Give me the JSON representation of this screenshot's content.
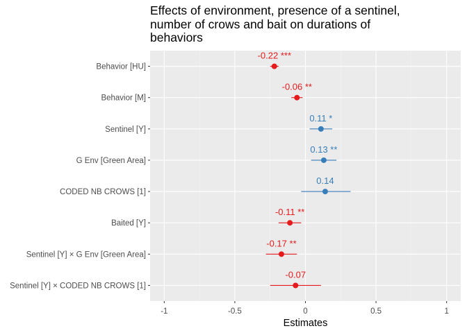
{
  "chart_data": {
    "type": "forest",
    "title": "Effects of environment, presence of a sentinel,\nnumber of crows and bait on durations of\nbehaviors",
    "xlabel": "Estimates",
    "xlim": [
      -1.1,
      1.1
    ],
    "xticks": [
      -1,
      -0.5,
      0,
      0.5,
      1
    ],
    "xtick_labels": [
      "-1",
      "-0.5",
      "0",
      "0.5",
      "1"
    ],
    "grid": true,
    "colors": {
      "negative": "#e41a1c",
      "positive": "#377eb8"
    },
    "terms": [
      {
        "label": "Behavior [HU]",
        "estimate": -0.22,
        "ci": [
          -0.25,
          -0.19
        ],
        "annotation": "-0.22 ***",
        "sign": "negative"
      },
      {
        "label": "Behavior [M]",
        "estimate": -0.06,
        "ci": [
          -0.1,
          -0.02
        ],
        "annotation": "-0.06 **",
        "sign": "negative"
      },
      {
        "label": "Sentinel [Y]",
        "estimate": 0.11,
        "ci": [
          0.03,
          0.19
        ],
        "annotation": "0.11 *",
        "sign": "positive"
      },
      {
        "label": "G Env [Green Area]",
        "estimate": 0.13,
        "ci": [
          0.04,
          0.22
        ],
        "annotation": "0.13 **",
        "sign": "positive"
      },
      {
        "label": "CODED NB CROWS [1]",
        "estimate": 0.14,
        "ci": [
          -0.03,
          0.32
        ],
        "annotation": "0.14",
        "sign": "positive"
      },
      {
        "label": "Baited [Y]",
        "estimate": -0.11,
        "ci": [
          -0.19,
          -0.03
        ],
        "annotation": "-0.11 **",
        "sign": "negative"
      },
      {
        "label": "Sentinel [Y] × G Env [Green Area]",
        "estimate": -0.17,
        "ci": [
          -0.28,
          -0.06
        ],
        "annotation": "-0.17 **",
        "sign": "negative"
      },
      {
        "label": "Sentinel [Y] × CODED NB CROWS [1]",
        "estimate": -0.07,
        "ci": [
          -0.25,
          0.11
        ],
        "annotation": "-0.07",
        "sign": "negative"
      }
    ]
  }
}
